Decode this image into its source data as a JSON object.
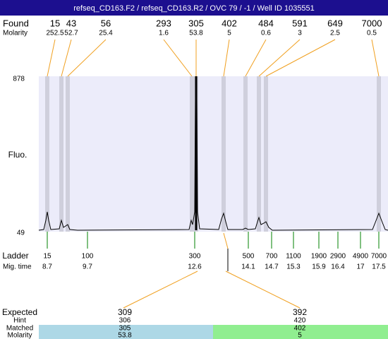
{
  "header": {
    "title": "refseq_CD163.F2 / refseq_CD163.R2 / OVC 79 / -1 / Well ID 1035551"
  },
  "found": {
    "label": "Found",
    "sublabel": "Molarity",
    "sizes": [
      15,
      43,
      56,
      293,
      305,
      402,
      484,
      591,
      649,
      7000
    ],
    "molarity": [
      252.5,
      52.7,
      25.4,
      1.6,
      53.8,
      5,
      0.6,
      3,
      2.5,
      0.5
    ]
  },
  "axis": {
    "label": "Fluo.",
    "top": 878,
    "bottom": 49
  },
  "ladder": {
    "label": "Ladder",
    "sublabel": "Mig. time",
    "sizes": [
      15,
      100,
      300,
      500,
      700,
      1100,
      1900,
      2900,
      4900,
      7000
    ],
    "times": [
      8.7,
      9.7,
      12.6,
      14.1,
      14.7,
      15.3,
      15.9,
      16.4,
      17,
      17.5
    ]
  },
  "expected": {
    "labels": [
      "Expected",
      "Hint",
      "Matched",
      "Molarity"
    ],
    "rows": [
      {
        "expected": 309,
        "hint": 306,
        "matched": 305,
        "molarity": 53.8
      },
      {
        "expected": 392,
        "hint": 420,
        "matched": 402,
        "molarity": 5
      }
    ]
  }
}
